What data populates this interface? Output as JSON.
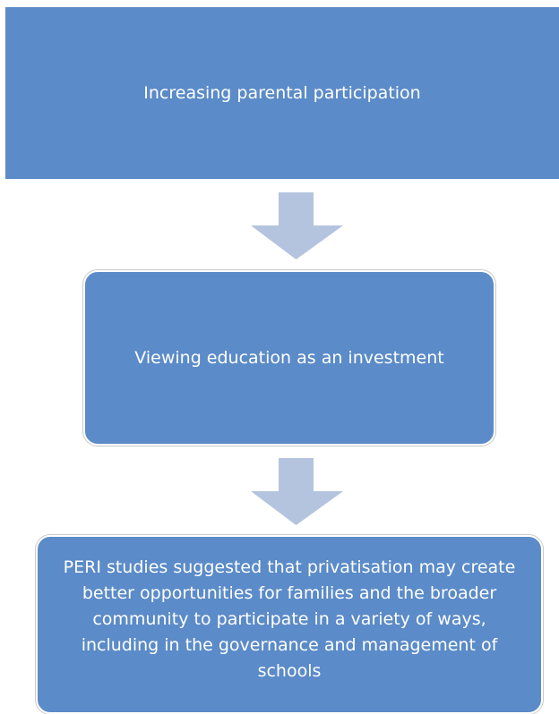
{
  "nodes": [
    {
      "label": "Increasing parental participation"
    },
    {
      "label": "Viewing education as an investment"
    },
    {
      "label": "PERI studies suggested that privatisation may create better opportunities for families and the broader community to participate in a variety of ways, including in the governance and management of schools"
    }
  ]
}
